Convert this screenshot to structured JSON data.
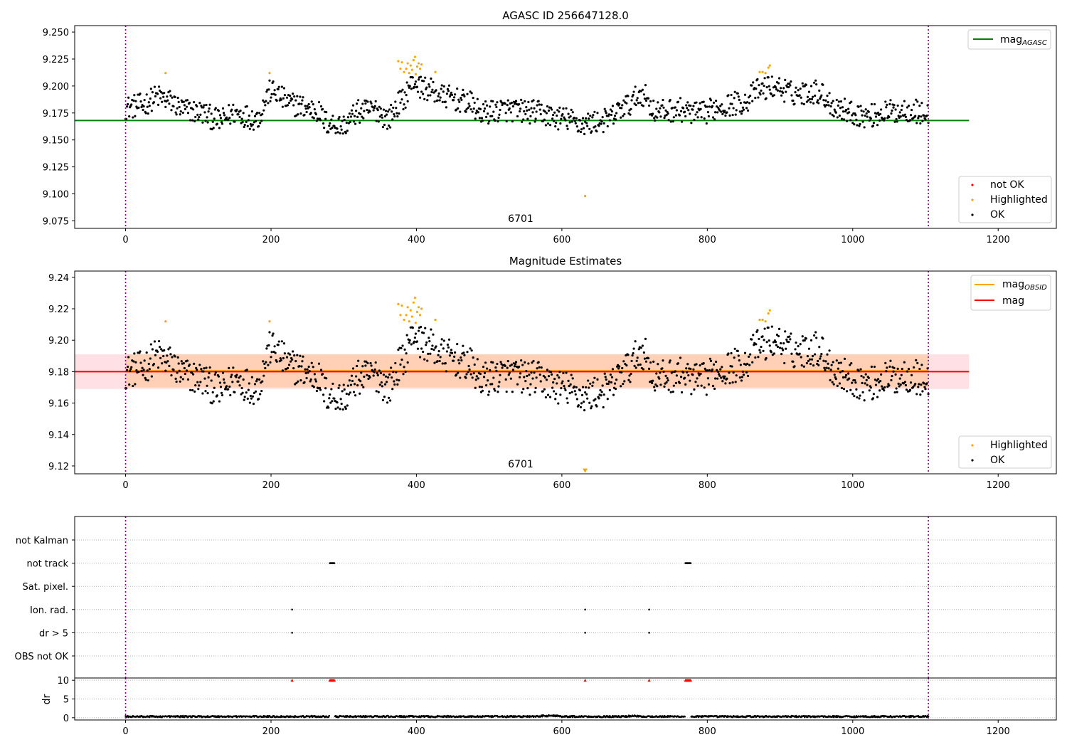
{
  "colors": {
    "ok": "#000000",
    "highlighted": "#ffa500",
    "not_ok": "#ff0000",
    "mag_agasc": "#008000",
    "mag_obsid": "#ffa500",
    "mag": "#ff0000",
    "obs_boundary": "#800080",
    "band_obsid": "#ffcba4",
    "band_mag": "#ffd6dc"
  },
  "chart_data": [
    {
      "type": "scatter",
      "title": "AGASC ID 256647128.0",
      "xlim": [
        -70,
        1280
      ],
      "ylim": [
        9.068,
        9.256
      ],
      "x_ticks": [
        "0",
        "200",
        "400",
        "600",
        "800",
        "1000",
        "1200"
      ],
      "y_ticks": [
        "9.075",
        "9.100",
        "9.125",
        "9.150",
        "9.175",
        "9.200",
        "9.225",
        "9.250"
      ],
      "grid": false,
      "obs_boundaries": [
        0,
        1104
      ],
      "obsid_label": "6701",
      "mag_agasc": 9.168,
      "mag_agasc_range": [
        -70,
        1160
      ],
      "series": [
        {
          "name": "not OK",
          "values": []
        },
        {
          "name": "Highlighted",
          "points": [
            [
              55,
              9.212
            ],
            [
              198,
              9.212
            ],
            [
              375,
              9.223
            ],
            [
              378,
              9.216
            ],
            [
              380,
              9.222
            ],
            [
              383,
              9.213
            ],
            [
              386,
              9.216
            ],
            [
              388,
              9.221
            ],
            [
              390,
              9.212
            ],
            [
              392,
              9.219
            ],
            [
              394,
              9.215
            ],
            [
              396,
              9.224
            ],
            [
              398,
              9.227
            ],
            [
              399,
              9.211
            ],
            [
              401,
              9.218
            ],
            [
              403,
              9.221
            ],
            [
              405,
              9.216
            ],
            [
              407,
              9.22
            ],
            [
              426,
              9.213
            ],
            [
              632,
              9.098
            ],
            [
              872,
              9.213
            ],
            [
              876,
              9.213
            ],
            [
              880,
              9.212
            ],
            [
              884,
              9.217
            ],
            [
              886,
              9.219
            ]
          ]
        },
        {
          "name": "OK",
          "description": "about 1100 photometry samples between 9.155 and 9.21"
        }
      ],
      "legend_top": {
        "position": "top-right",
        "label": "mag",
        "subscript": "AGASC"
      },
      "legend_bottom": {
        "position": "lower-right",
        "labels": [
          "not OK",
          "Highlighted",
          "OK"
        ]
      }
    },
    {
      "type": "scatter",
      "title": "Magnitude Estimates",
      "xlim": [
        -70,
        1280
      ],
      "ylim": [
        9.115,
        9.244
      ],
      "x_ticks": [
        "0",
        "200",
        "400",
        "600",
        "800",
        "1000",
        "1200"
      ],
      "y_ticks": [
        "9.12",
        "9.14",
        "9.16",
        "9.18",
        "9.20",
        "9.22",
        "9.24"
      ],
      "grid": false,
      "obs_boundaries": [
        0,
        1104
      ],
      "obsid_label": "6701",
      "mag_obsid": 9.1805,
      "mag_obsid_band": [
        9.17,
        9.191
      ],
      "mag": 9.18,
      "mag_band": [
        9.169,
        9.191
      ],
      "band_range": [
        -70,
        1160
      ],
      "highlighted_marker": {
        "x": 632,
        "y": 9.117
      },
      "series": [
        {
          "name": "Highlighted",
          "points": [
            [
              55,
              9.212
            ],
            [
              198,
              9.212
            ],
            [
              375,
              9.223
            ],
            [
              378,
              9.216
            ],
            [
              380,
              9.222
            ],
            [
              383,
              9.213
            ],
            [
              386,
              9.216
            ],
            [
              388,
              9.221
            ],
            [
              390,
              9.212
            ],
            [
              392,
              9.219
            ],
            [
              394,
              9.215
            ],
            [
              396,
              9.224
            ],
            [
              398,
              9.227
            ],
            [
              399,
              9.211
            ],
            [
              401,
              9.218
            ],
            [
              403,
              9.221
            ],
            [
              405,
              9.216
            ],
            [
              407,
              9.22
            ],
            [
              426,
              9.213
            ],
            [
              872,
              9.213
            ],
            [
              876,
              9.213
            ],
            [
              880,
              9.212
            ],
            [
              884,
              9.217
            ],
            [
              886,
              9.219
            ]
          ]
        },
        {
          "name": "OK",
          "description": "same photometry samples as the top panel"
        }
      ],
      "legend_top": {
        "position": "top-right",
        "labels": [
          {
            "label": "mag",
            "subscript": "OBSID"
          },
          {
            "label": "mag",
            "subscript": ""
          }
        ]
      },
      "legend_bottom": {
        "position": "lower-right",
        "labels": [
          "Highlighted",
          "OK"
        ]
      }
    },
    {
      "type": "scatter",
      "title": "",
      "xlim": [
        -70,
        1280
      ],
      "x_ticks": [
        "0",
        "200",
        "400",
        "600",
        "800",
        "1000",
        "1200"
      ],
      "grid": true,
      "obs_boundaries": [
        0,
        1104
      ],
      "flag_rows": [
        "not Kalman",
        "not track",
        "Sat. pixel.",
        "Ion. rad.",
        "dr > 5",
        "OBS not OK"
      ],
      "flags": {
        "not Kalman": [],
        "not track": [
          281,
          282,
          283,
          284,
          285,
          286,
          287,
          770,
          771,
          772,
          773,
          774,
          775,
          776,
          777
        ],
        "Sat. pixel.": [],
        "Ion. rad.": [
          229,
          632,
          720
        ],
        "dr > 5": [
          229,
          632,
          720
        ],
        "OBS not OK": []
      }
    },
    {
      "type": "scatter",
      "title": "",
      "xlim": [
        -70,
        1280
      ],
      "ylim": [
        -0.6,
        10.6
      ],
      "ylabel": "dr",
      "x_ticks": [
        "0",
        "200",
        "400",
        "600",
        "800",
        "1000",
        "1200"
      ],
      "y_ticks": [
        "0",
        "5",
        "10"
      ],
      "grid": true,
      "obs_boundaries": [
        0,
        1104
      ],
      "clipped_points": [
        229,
        281,
        282,
        283,
        284,
        285,
        286,
        287,
        632,
        720,
        770,
        771,
        772,
        773,
        774,
        775,
        776,
        777
      ],
      "series": [
        {
          "name": "",
          "description": "dr values between 0 and 0.7 with gaps at the flagged samples"
        }
      ]
    }
  ]
}
